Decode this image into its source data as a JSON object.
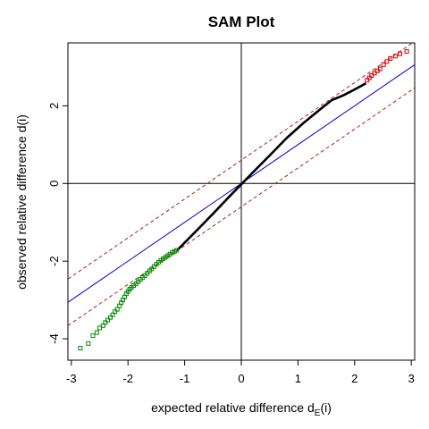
{
  "chart_data": {
    "type": "scatter",
    "title": "SAM Plot",
    "xlabel": {
      "main": "expected relative difference d",
      "sub": "E",
      "tail": "(i)"
    },
    "ylabel": "observed relative difference d(i)",
    "xlim": [
      -3.06,
      3.06
    ],
    "ylim": [
      -4.55,
      3.62
    ],
    "xticks": [
      {
        "value": -3,
        "label": "-3"
      },
      {
        "value": -2,
        "label": "-2"
      },
      {
        "value": -1,
        "label": "-1"
      },
      {
        "value": 0,
        "label": "0"
      },
      {
        "value": 1,
        "label": "1"
      },
      {
        "value": 2,
        "label": "2"
      },
      {
        "value": 3,
        "label": "3"
      }
    ],
    "yticks": [
      {
        "value": -4,
        "label": "-4"
      },
      {
        "value": -2,
        "label": "-2"
      },
      {
        "value": 0,
        "label": "0"
      },
      {
        "value": 2,
        "label": "2"
      }
    ],
    "reference_lines": {
      "identity": {
        "slope": 1,
        "intercept": 0,
        "color": "#0000cc",
        "style": "solid"
      },
      "upper_band": {
        "slope": 1,
        "intercept": 0.6,
        "color": "#aa2222",
        "style": "dashed"
      },
      "lower_band": {
        "slope": 1,
        "intercept": -0.6,
        "color": "#aa2222",
        "style": "dashed"
      },
      "zero_axes": {
        "color": "#000000",
        "style": "solid"
      }
    },
    "series": [
      {
        "group": "non-significant",
        "marker": "small-dot",
        "color": "#000000",
        "curve": [
          [
            -1.12,
            -1.7
          ],
          [
            -0.8,
            -1.23
          ],
          [
            -0.5,
            -0.78
          ],
          [
            -0.2,
            -0.32
          ],
          [
            0,
            -0.02
          ],
          [
            0.2,
            0.28
          ],
          [
            0.5,
            0.72
          ],
          [
            0.8,
            1.17
          ],
          [
            1.1,
            1.56
          ],
          [
            1.4,
            1.92
          ],
          [
            1.6,
            2.15
          ],
          [
            1.8,
            2.27
          ],
          [
            2.0,
            2.42
          ],
          [
            2.2,
            2.58
          ]
        ]
      },
      {
        "group": "significant-negative",
        "marker": "open-square",
        "color": "#008800",
        "points": [
          [
            -2.84,
            -4.24
          ],
          [
            -2.7,
            -4.12
          ],
          [
            -2.62,
            -3.92
          ],
          [
            -2.55,
            -3.84
          ],
          [
            -2.5,
            -3.72
          ],
          [
            -2.44,
            -3.66
          ],
          [
            -2.4,
            -3.58
          ],
          [
            -2.36,
            -3.52
          ],
          [
            -2.31,
            -3.45
          ],
          [
            -2.27,
            -3.38
          ],
          [
            -2.23,
            -3.3
          ],
          [
            -2.19,
            -3.24
          ],
          [
            -2.15,
            -3.15
          ],
          [
            -2.12,
            -3.07
          ],
          [
            -2.09,
            -3.0
          ],
          [
            -2.06,
            -2.92
          ],
          [
            -2.03,
            -2.84
          ],
          [
            -2.0,
            -2.78
          ],
          [
            -1.97,
            -2.72
          ],
          [
            -1.94,
            -2.68
          ],
          [
            -1.9,
            -2.63
          ],
          [
            -1.86,
            -2.58
          ],
          [
            -1.82,
            -2.53
          ],
          [
            -1.78,
            -2.47
          ],
          [
            -1.74,
            -2.42
          ],
          [
            -1.7,
            -2.37
          ],
          [
            -1.66,
            -2.31
          ],
          [
            -1.62,
            -2.25
          ],
          [
            -1.58,
            -2.2
          ],
          [
            -1.54,
            -2.14
          ],
          [
            -1.5,
            -2.08
          ],
          [
            -1.46,
            -2.03
          ],
          [
            -1.42,
            -1.98
          ],
          [
            -1.38,
            -1.94
          ],
          [
            -1.34,
            -1.9
          ],
          [
            -1.3,
            -1.86
          ],
          [
            -1.26,
            -1.82
          ],
          [
            -1.22,
            -1.78
          ],
          [
            -1.18,
            -1.75
          ],
          [
            -1.14,
            -1.72
          ]
        ]
      },
      {
        "group": "significant-positive",
        "marker": "open-square",
        "color": "#cc0000",
        "points": [
          [
            2.22,
            2.66
          ],
          [
            2.26,
            2.72
          ],
          [
            2.3,
            2.78
          ],
          [
            2.35,
            2.84
          ],
          [
            2.4,
            2.9
          ],
          [
            2.45,
            2.95
          ],
          [
            2.51,
            3.06
          ],
          [
            2.57,
            3.14
          ],
          [
            2.63,
            3.22
          ],
          [
            2.72,
            3.28
          ],
          [
            2.8,
            3.34
          ],
          [
            2.92,
            3.4
          ]
        ]
      }
    ]
  }
}
